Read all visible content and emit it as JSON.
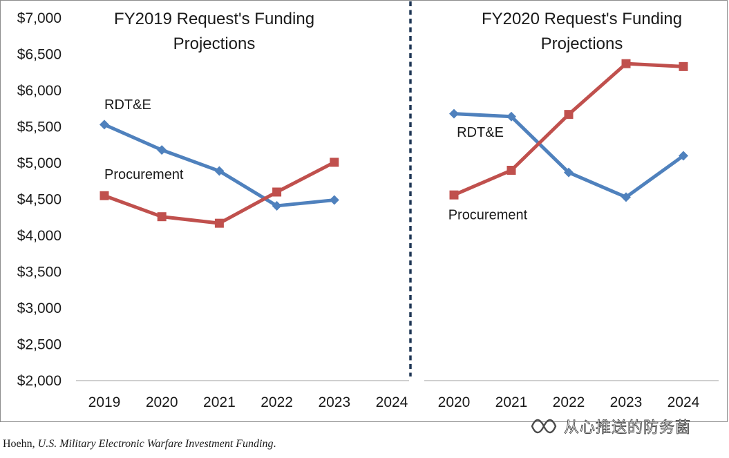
{
  "caption": {
    "author": "Hoehn, ",
    "title": "U.S. Military Electronic Warfare Investment Funding",
    "end": "."
  },
  "watermark": {
    "text": "从心推送的防务菌",
    "icon": "wechat-channel-icon"
  },
  "colors": {
    "rdte": "#4f81bd",
    "procurement": "#c0504d",
    "divider": "#1f3655",
    "axis": "#bfbfbf"
  },
  "chart_data": {
    "type": "line",
    "y_axis": {
      "ylim": [
        2000,
        7000
      ],
      "ticks": [
        2000,
        2500,
        3000,
        3500,
        4000,
        4500,
        5000,
        5500,
        6000,
        6500,
        7000
      ],
      "tick_labels": [
        "$2,000",
        "$2,500",
        "$3,000",
        "$3,500",
        "$4,000",
        "$4,500",
        "$5,000",
        "$5,500",
        "$6,000",
        "$6,500",
        "$7,000"
      ]
    },
    "panels": [
      {
        "title_lines": [
          "FY2019 Request's Funding",
          "Projections"
        ],
        "categories": [
          "2019",
          "2020",
          "2021",
          "2022",
          "2023",
          "2024"
        ],
        "series": [
          {
            "name": "RDT&E",
            "marker": "diamond",
            "values": [
              5530,
              5180,
              4890,
              4410,
              4490,
              null
            ]
          },
          {
            "name": "Procurement",
            "marker": "square",
            "values": [
              4550,
              4260,
              4170,
              4600,
              5010,
              null
            ]
          }
        ],
        "annotations": [
          {
            "text": "RDT&E",
            "x_index": 0,
            "value": 5810
          },
          {
            "text": "Procurement",
            "x_index": 0,
            "value": 4850
          }
        ]
      },
      {
        "title_lines": [
          "FY2020 Request's Funding",
          "Projections"
        ],
        "categories": [
          "2020",
          "2021",
          "2022",
          "2023",
          "2024"
        ],
        "series": [
          {
            "name": "RDT&E",
            "marker": "diamond",
            "values": [
              5680,
              5640,
              4870,
              4530,
              5100
            ]
          },
          {
            "name": "Procurement",
            "marker": "square",
            "values": [
              4560,
              4900,
              5670,
              6370,
              6330
            ]
          }
        ],
        "annotations": [
          {
            "text": "RDT&E",
            "x_index": 0.05,
            "value": 5430
          },
          {
            "text": "Procurement",
            "x_index": -0.1,
            "value": 4290
          }
        ]
      }
    ],
    "grid": false,
    "legend": "none"
  }
}
